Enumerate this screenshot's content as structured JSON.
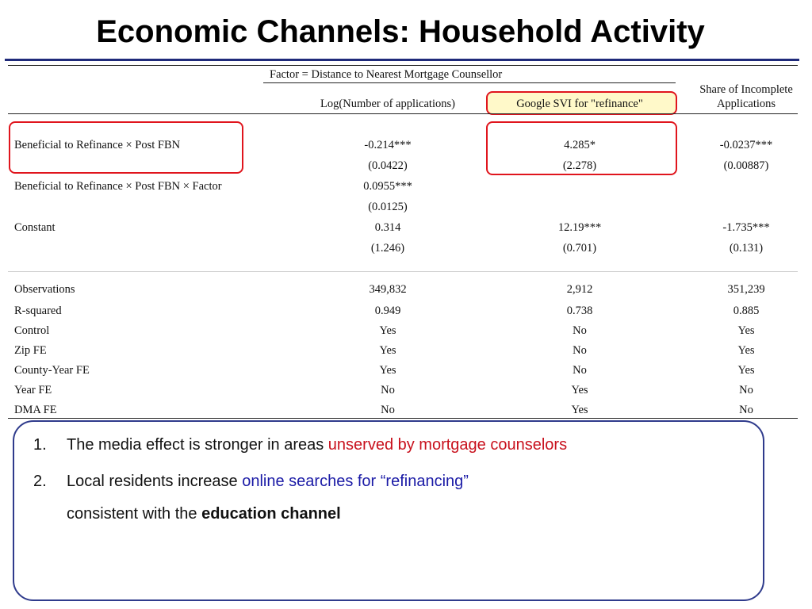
{
  "slide": {
    "title": "Economic Channels: Household Activity"
  },
  "table": {
    "factor_header": "Factor = Distance to Nearest Mortgage Counsellor",
    "columns": [
      "Log(Number of applications)",
      "Google SVI for \"refinance\"",
      "Share of Incomplete",
      "Applications"
    ],
    "rows": [
      {
        "label": "Beneficial to Refinance × Post FBN",
        "c1": "-0.214***",
        "c2": "4.285*",
        "c3": "-0.0237***"
      },
      {
        "label": "",
        "c1": "(0.0422)",
        "c2": "(2.278)",
        "c3": "(0.00887)"
      },
      {
        "label": "Beneficial to Refinance × Post FBN × Factor",
        "c1": "0.0955***",
        "c2": "",
        "c3": ""
      },
      {
        "label": "",
        "c1": "(0.0125)",
        "c2": "",
        "c3": ""
      },
      {
        "label": "Constant",
        "c1": "0.314",
        "c2": "12.19***",
        "c3": "-1.735***"
      },
      {
        "label": "",
        "c1": "(1.246)",
        "c2": "(0.701)",
        "c3": "(0.131)"
      },
      {
        "label": "Observations",
        "c1": "349,832",
        "c2": "2,912",
        "c3": "351,239"
      },
      {
        "label": "R-squared",
        "c1": "0.949",
        "c2": "0.738",
        "c3": "0.885"
      },
      {
        "label": "Control",
        "c1": "Yes",
        "c2": "No",
        "c3": "Yes"
      },
      {
        "label": "Zip FE",
        "c1": "Yes",
        "c2": "No",
        "c3": "Yes"
      },
      {
        "label": "County-Year FE",
        "c1": "Yes",
        "c2": "No",
        "c3": "Yes"
      },
      {
        "label": "Year FE",
        "c1": "No",
        "c2": "Yes",
        "c3": "No"
      },
      {
        "label": "DMA FE",
        "c1": "No",
        "c2": "Yes",
        "c3": "No"
      }
    ]
  },
  "notes": {
    "item1": {
      "num": "1.",
      "text": "The media effect is stronger in areas ",
      "highlight": "unserved by mortgage counselors"
    },
    "item2": {
      "num": "2.",
      "text": "Local residents increase ",
      "highlight": "online searches for “refinancing”",
      "line2_text": "consistent with the ",
      "line2_bold": "education channel"
    }
  },
  "colors": {
    "title_rule": "#1f2a7a",
    "highlight_border": "#e0151d",
    "highlight_fill": "#fff9c9",
    "note_red": "#c8101c",
    "note_blue": "#1a1aa6",
    "notes_border": "#2f3b8c"
  }
}
